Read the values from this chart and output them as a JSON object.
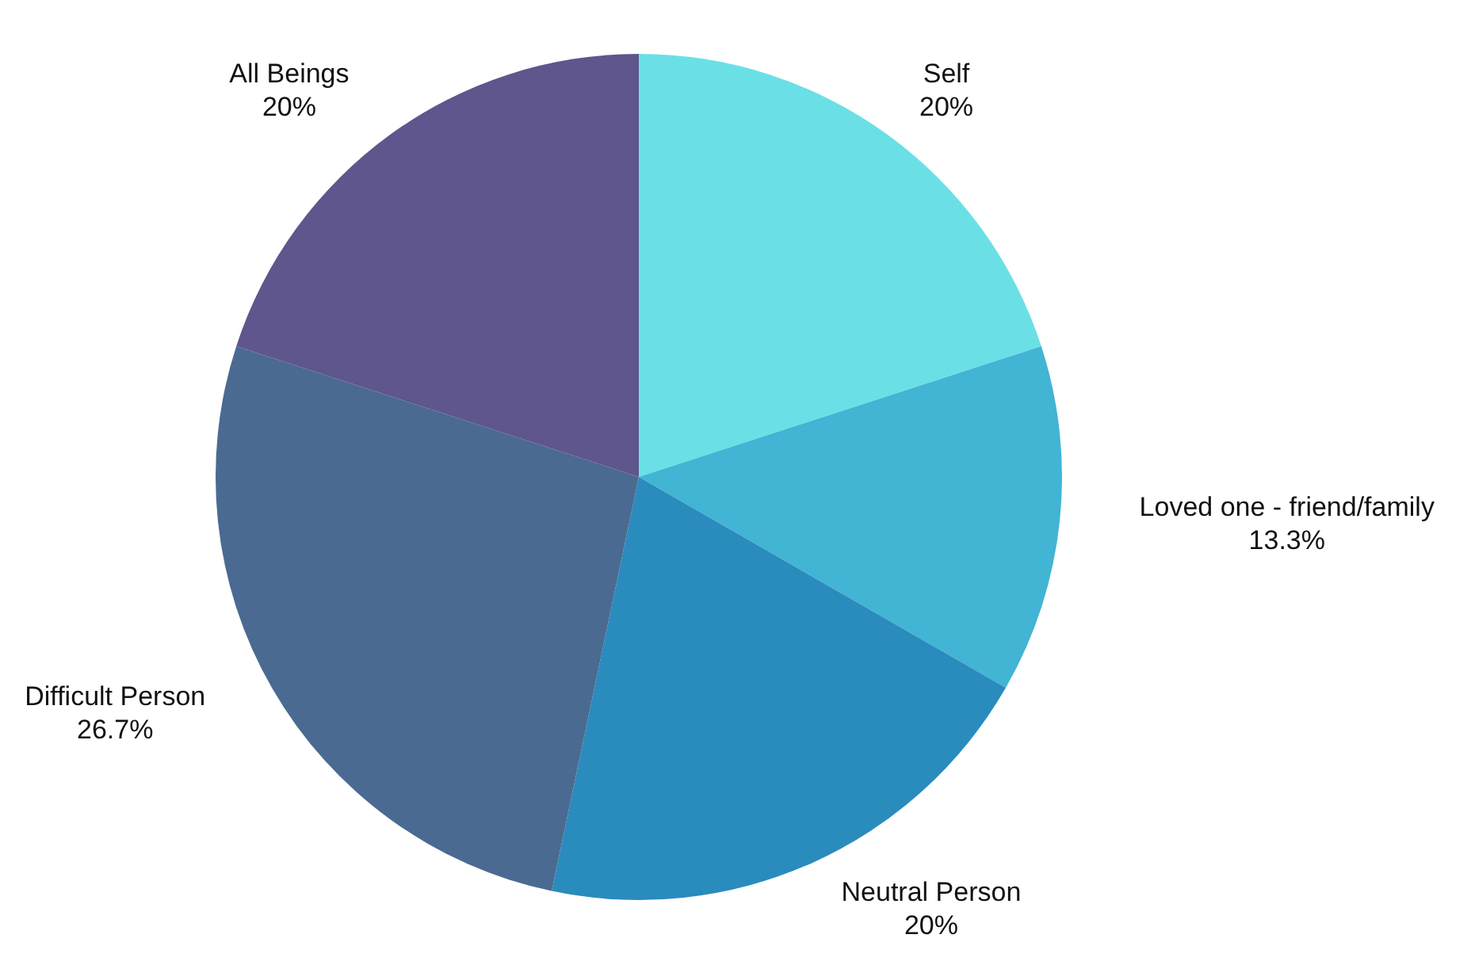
{
  "chart_data": {
    "type": "pie",
    "categories": [
      "Self",
      "Loved one - friend/family",
      "Neutral Person",
      "Difficult Person",
      "All Beings"
    ],
    "values": [
      20,
      13.3,
      20,
      26.7,
      20
    ],
    "value_labels": [
      "20%",
      "13.3%",
      "20%",
      "26.7%",
      "20%"
    ],
    "colors": [
      "#6ae0e6",
      "#42b4d4",
      "#2a8bbd",
      "#4a6a92",
      "#5e568c"
    ],
    "legend": false
  }
}
